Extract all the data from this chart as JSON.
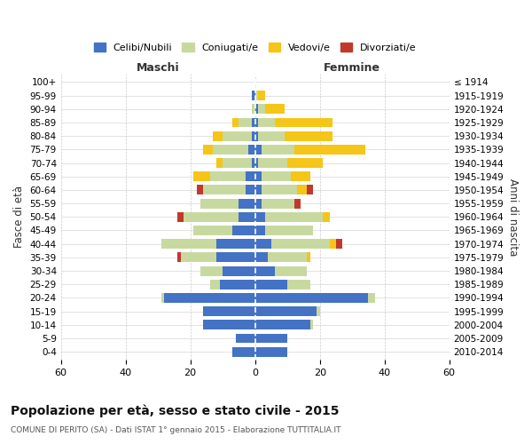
{
  "age_groups": [
    "100+",
    "95-99",
    "90-94",
    "85-89",
    "80-84",
    "75-79",
    "70-74",
    "65-69",
    "60-64",
    "55-59",
    "50-54",
    "45-49",
    "40-44",
    "35-39",
    "30-34",
    "25-29",
    "20-24",
    "15-19",
    "10-14",
    "5-9",
    "0-4"
  ],
  "birth_years": [
    "≤ 1914",
    "1915-1919",
    "1920-1924",
    "1925-1929",
    "1930-1934",
    "1935-1939",
    "1940-1944",
    "1945-1949",
    "1950-1954",
    "1955-1959",
    "1960-1964",
    "1965-1969",
    "1970-1974",
    "1975-1979",
    "1980-1984",
    "1985-1989",
    "1990-1994",
    "1995-1999",
    "2000-2004",
    "2005-2009",
    "2010-2014"
  ],
  "maschi": {
    "celibi": [
      0,
      1,
      0,
      1,
      1,
      2,
      1,
      3,
      3,
      5,
      5,
      7,
      12,
      12,
      10,
      11,
      28,
      16,
      16,
      6,
      7
    ],
    "coniugati": [
      0,
      0,
      1,
      4,
      9,
      11,
      9,
      11,
      13,
      12,
      17,
      12,
      17,
      11,
      7,
      3,
      1,
      0,
      0,
      0,
      0
    ],
    "vedovi": [
      0,
      0,
      0,
      2,
      3,
      3,
      2,
      5,
      0,
      0,
      0,
      0,
      0,
      0,
      0,
      0,
      0,
      0,
      0,
      0,
      0
    ],
    "divorziati": [
      0,
      0,
      0,
      0,
      0,
      0,
      0,
      0,
      2,
      0,
      2,
      0,
      0,
      1,
      0,
      0,
      0,
      0,
      0,
      0,
      0
    ]
  },
  "femmine": {
    "nubili": [
      0,
      0,
      1,
      1,
      1,
      2,
      1,
      2,
      2,
      2,
      3,
      3,
      5,
      4,
      6,
      10,
      35,
      19,
      17,
      10,
      10
    ],
    "coniugate": [
      0,
      1,
      2,
      5,
      8,
      10,
      9,
      9,
      11,
      10,
      18,
      15,
      18,
      12,
      10,
      7,
      2,
      1,
      1,
      0,
      0
    ],
    "vedove": [
      0,
      2,
      6,
      18,
      15,
      22,
      11,
      6,
      3,
      0,
      2,
      0,
      2,
      1,
      0,
      0,
      0,
      0,
      0,
      0,
      0
    ],
    "divorziate": [
      0,
      0,
      0,
      0,
      0,
      0,
      0,
      0,
      2,
      2,
      0,
      0,
      2,
      0,
      0,
      0,
      0,
      0,
      0,
      0,
      0
    ]
  },
  "colors": {
    "celibi_nubili": "#4472c4",
    "coniugati": "#c8d9a0",
    "vedovi": "#f5c518",
    "divorziati": "#c0392b"
  },
  "xlim": 60,
  "title": "Popolazione per età, sesso e stato civile - 2015",
  "subtitle": "COMUNE DI PERITO (SA) - Dati ISTAT 1° gennaio 2015 - Elaborazione TUTTITALIA.IT",
  "ylabel_left": "Fasce di età",
  "ylabel_right": "Anni di nascita",
  "xlabel_maschi": "Maschi",
  "xlabel_femmine": "Femmine",
  "legend_labels": [
    "Celibi/Nubili",
    "Coniugati/e",
    "Vedovi/e",
    "Divorziati/e"
  ],
  "background_color": "#ffffff",
  "grid_color": "#cccccc"
}
